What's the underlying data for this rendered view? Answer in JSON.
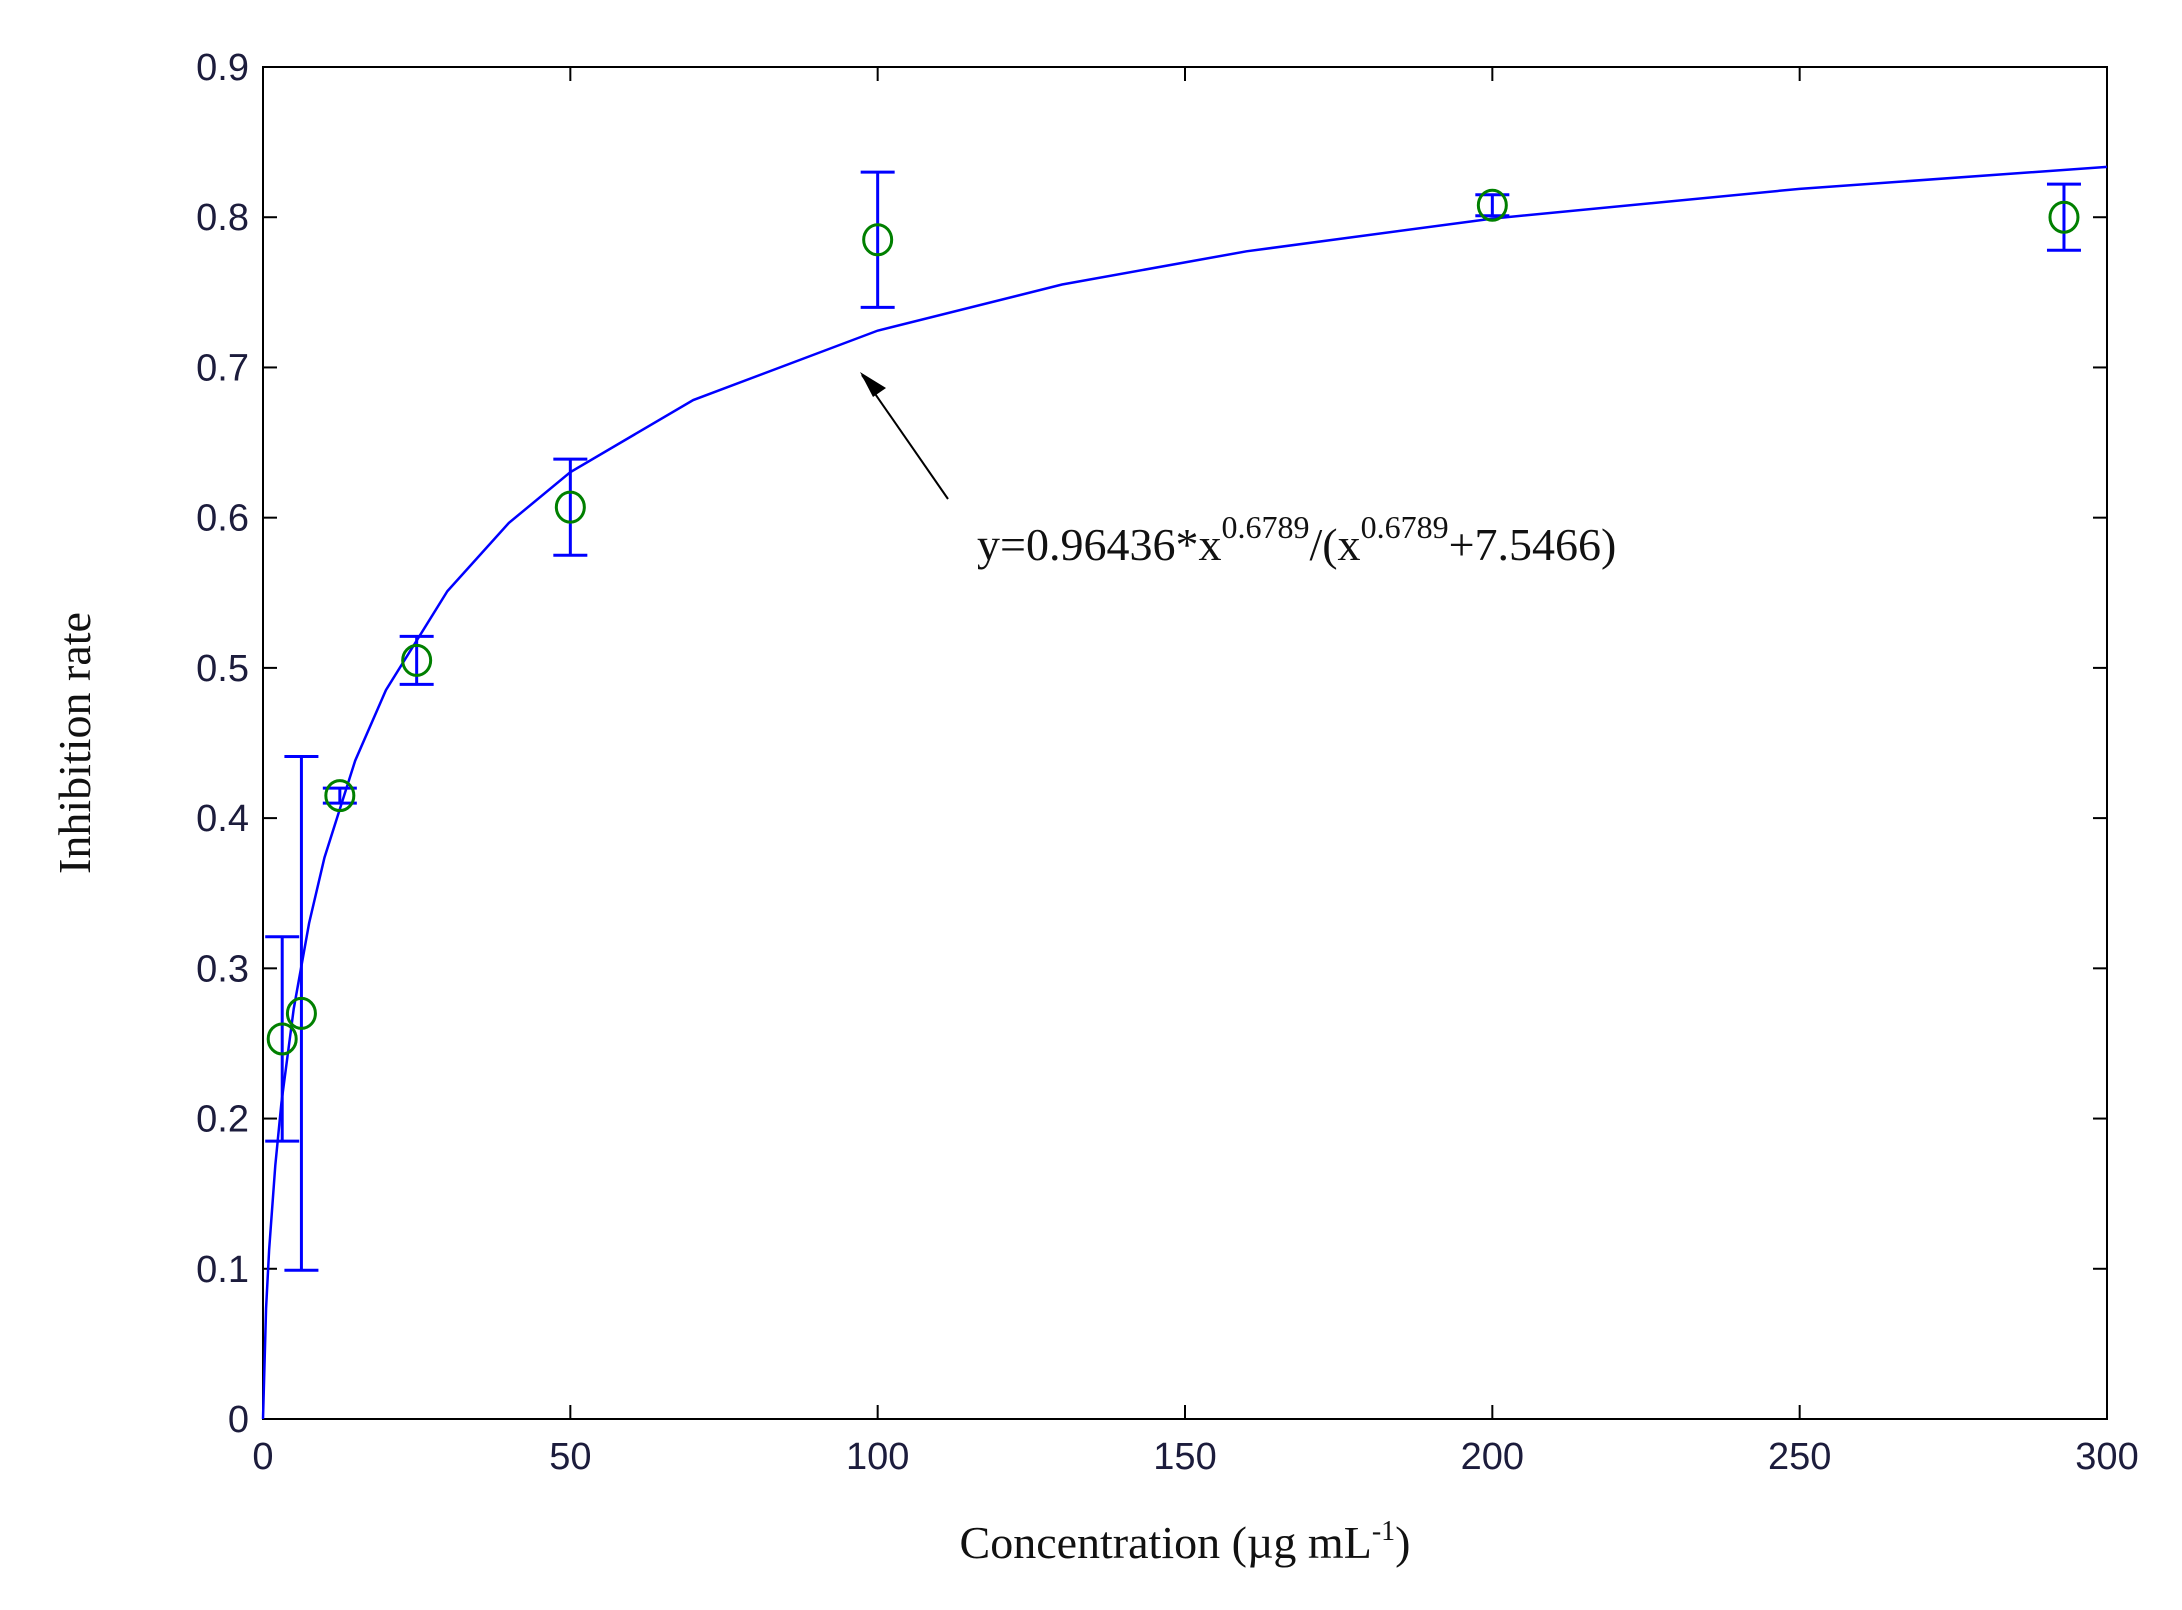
{
  "chart_data": {
    "type": "scatter",
    "xlabel": {
      "parts": [
        "Concentration (µg mL",
        "-1",
        ")"
      ]
    },
    "ylabel": "Inhibition rate",
    "xlim": [
      0,
      300
    ],
    "ylim": [
      0,
      0.9
    ],
    "xticks": [
      0,
      50,
      100,
      150,
      200,
      250,
      300
    ],
    "yticks": [
      0,
      0.1,
      0.2,
      0.3,
      0.4,
      0.5,
      0.6,
      0.7,
      0.8,
      0.9
    ],
    "series": [
      {
        "color": "#008000",
        "error_color": "#0000ff",
        "x": [
          3.125,
          6.25,
          12.5,
          25,
          50,
          100,
          200,
          293
        ],
        "values": [
          0.253,
          0.27,
          0.415,
          0.505,
          0.607,
          0.785,
          0.808,
          0.8
        ],
        "errors": [
          0.068,
          0.171,
          0.005,
          0.016,
          0.032,
          0.045,
          0.007,
          0.022
        ]
      }
    ],
    "fit": {
      "color": "#0000ff",
      "x": [
        0,
        0.5,
        1,
        2,
        3,
        5,
        7.5,
        10,
        15,
        20,
        30,
        40,
        50,
        70,
        100,
        130,
        160,
        200,
        250,
        300
      ],
      "values": [
        0,
        0.0737,
        0.1128,
        0.1688,
        0.2106,
        0.2731,
        0.3301,
        0.3737,
        0.4383,
        0.4852,
        0.5511,
        0.5965,
        0.6303,
        0.6783,
        0.7245,
        0.7552,
        0.7773,
        0.7991,
        0.8189,
        0.8335
      ]
    },
    "annotation": {
      "parts": [
        "y=0.96436*x",
        "0.6789",
        "/(x",
        "0.6789",
        "+7.5466)"
      ]
    }
  }
}
